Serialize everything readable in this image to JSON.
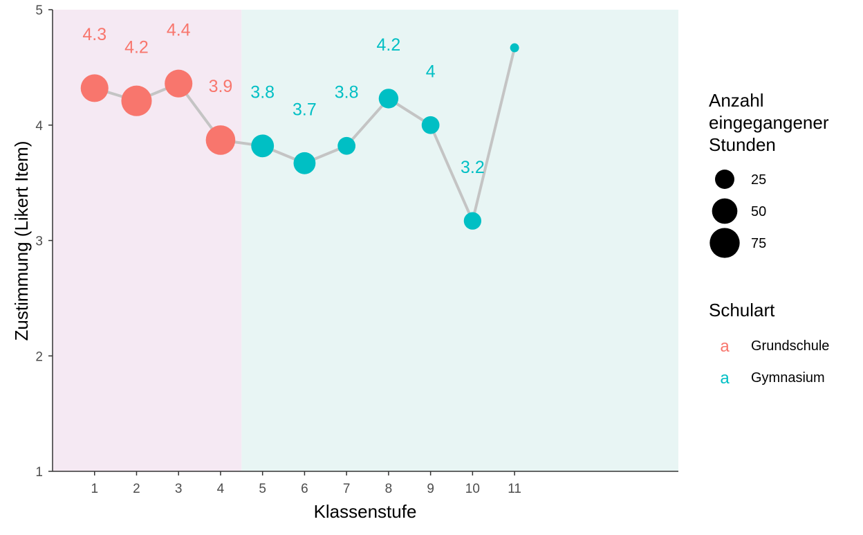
{
  "chart_data": {
    "type": "line",
    "xlabel": "Klassenstufe",
    "ylabel": "Zustimmung (Likert Item)",
    "xlim": [
      0,
      14.9
    ],
    "ylim": [
      1,
      5
    ],
    "x_ticks": [
      "1",
      "2",
      "3",
      "4",
      "5",
      "6",
      "7",
      "8",
      "9",
      "10",
      "11"
    ],
    "y_ticks": [
      "1",
      "2",
      "3",
      "4",
      "5"
    ],
    "grid": false,
    "points": [
      {
        "x": 1,
        "y": 4.32,
        "label": "4.3",
        "stunden": 62,
        "schulart": "Grundschule"
      },
      {
        "x": 2,
        "y": 4.21,
        "label": "4.2",
        "stunden": 78,
        "schulart": "Grundschule"
      },
      {
        "x": 3,
        "y": 4.36,
        "label": "4.4",
        "stunden": 62,
        "schulart": "Grundschule"
      },
      {
        "x": 4,
        "y": 3.87,
        "label": "3.9",
        "stunden": 72,
        "schulart": "Grundschule"
      },
      {
        "x": 5,
        "y": 3.82,
        "label": "3.8",
        "stunden": 38,
        "schulart": "Gymnasium"
      },
      {
        "x": 6,
        "y": 3.67,
        "label": "3.7",
        "stunden": 35,
        "schulart": "Gymnasium"
      },
      {
        "x": 7,
        "y": 3.82,
        "label": "3.8",
        "stunden": 20,
        "schulart": "Gymnasium"
      },
      {
        "x": 8,
        "y": 4.23,
        "label": "4.2",
        "stunden": 26,
        "schulart": "Gymnasium"
      },
      {
        "x": 9,
        "y": 4.0,
        "label": "4",
        "stunden": 20,
        "schulart": "Gymnasium"
      },
      {
        "x": 10,
        "y": 3.17,
        "label": "3.2",
        "stunden": 19,
        "schulart": "Gymnasium"
      },
      {
        "x": 11,
        "y": 4.67,
        "label": "",
        "stunden": 2,
        "schulart": "Gymnasium"
      }
    ],
    "background_regions": [
      {
        "schulart": "Grundschule",
        "x_from": 0,
        "x_to": 4.5,
        "color": "#f5e9f3"
      },
      {
        "schulart": "Gymnasium",
        "x_from": 4.5,
        "x_to": 14.9,
        "color": "#e8f5f4"
      }
    ],
    "line_color": "#c4c4c4",
    "legend": {
      "placement": "right",
      "size_title": [
        "Anzahl",
        "eingegangener",
        "Stunden"
      ],
      "size_entries": [
        {
          "label": "25",
          "value": 25
        },
        {
          "label": "50",
          "value": 50
        },
        {
          "label": "75",
          "value": 75
        }
      ],
      "color_title": "Schulart",
      "color_key_glyph": "a",
      "color_entries": [
        {
          "label": "Grundschule",
          "color": "#f8766d"
        },
        {
          "label": "Gymnasium",
          "color": "#00bfc4"
        }
      ]
    }
  }
}
